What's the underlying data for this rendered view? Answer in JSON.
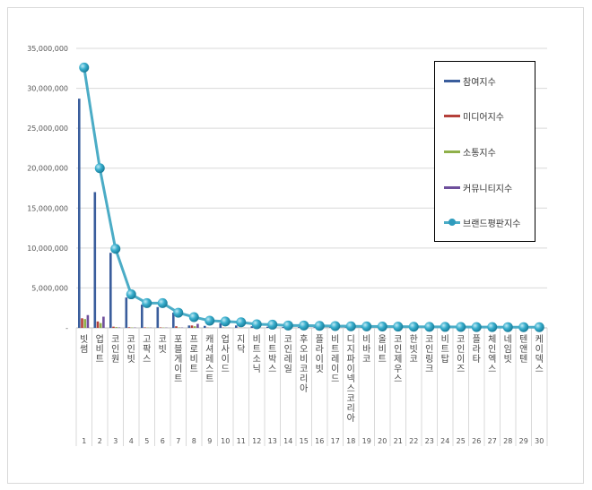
{
  "chart_data": {
    "type": "bar",
    "ylim": [
      0,
      35000000
    ],
    "yticks": [
      "-",
      "5,000,000",
      "10,000,000",
      "15,000,000",
      "20,000,000",
      "25,000,000",
      "30,000,000",
      "35,000,000"
    ],
    "grid": true,
    "legend_position": "right",
    "categories": [
      "빗썸",
      "업비트",
      "코인원",
      "코인빗",
      "고팍스",
      "코빗",
      "포블게이트",
      "프로비트",
      "캐셔레스트",
      "업사이드",
      "지닥",
      "비트소닉",
      "비트박스",
      "코인레일",
      "후오비코리아",
      "플라이빗",
      "비트레이드",
      "디지파이넥스코리아",
      "비바코",
      "올비트",
      "코인제우스",
      "한빗코",
      "코인링크",
      "비트탑",
      "코인이즈",
      "플라타",
      "체인엑스",
      "네임빗",
      "텐앤텐",
      "케이덱스"
    ],
    "ranks": [
      "1",
      "2",
      "3",
      "4",
      "5",
      "6",
      "7",
      "8",
      "9",
      "10",
      "11",
      "12",
      "13",
      "14",
      "15",
      "16",
      "17",
      "18",
      "19",
      "20",
      "21",
      "22",
      "23",
      "24",
      "25",
      "26",
      "27",
      "28",
      "29",
      "30"
    ],
    "series": [
      {
        "name": "참여지수",
        "type": "bar",
        "color": "#3a5d9c",
        "values": [
          28700000,
          17000000,
          9400000,
          3800000,
          2900000,
          2600000,
          1900000,
          300000,
          250000,
          600000,
          300000,
          200000,
          150000,
          120000,
          100000,
          90000,
          80000,
          70000,
          60000,
          50000,
          40000,
          40000,
          30000,
          30000,
          30000,
          20000,
          20000,
          20000,
          20000,
          20000
        ]
      },
      {
        "name": "미디어지수",
        "type": "bar",
        "color": "#b5403a",
        "values": [
          1200000,
          800000,
          150000,
          80000,
          60000,
          60000,
          200000,
          300000,
          30000,
          30000,
          20000,
          20000,
          20000,
          20000,
          20000,
          10000,
          10000,
          10000,
          10000,
          10000,
          10000,
          10000,
          10000,
          10000,
          10000,
          10000,
          10000,
          10000,
          10000,
          10000
        ]
      },
      {
        "name": "소통지수",
        "type": "bar",
        "color": "#8fb04a",
        "values": [
          1100000,
          600000,
          100000,
          50000,
          40000,
          40000,
          60000,
          200000,
          20000,
          20000,
          10000,
          10000,
          10000,
          10000,
          10000,
          10000,
          10000,
          10000,
          10000,
          10000,
          10000,
          10000,
          10000,
          10000,
          10000,
          10000,
          10000,
          10000,
          10000,
          10000
        ]
      },
      {
        "name": "커뮤니티지수",
        "type": "bar",
        "color": "#6e4f9c",
        "values": [
          1600000,
          1400000,
          60000,
          40000,
          30000,
          30000,
          40000,
          500000,
          20000,
          20000,
          10000,
          10000,
          10000,
          10000,
          10000,
          10000,
          10000,
          10000,
          10000,
          10000,
          10000,
          10000,
          10000,
          10000,
          10000,
          10000,
          10000,
          10000,
          10000,
          10000
        ]
      },
      {
        "name": "브랜드평판지수",
        "type": "line",
        "color": "#4bacc6",
        "values": [
          32600000,
          20000000,
          9900000,
          4200000,
          3100000,
          3100000,
          1900000,
          1350000,
          900000,
          800000,
          700000,
          450000,
          400000,
          300000,
          300000,
          250000,
          230000,
          200000,
          180000,
          170000,
          150000,
          140000,
          130000,
          120000,
          110000,
          100000,
          100000,
          90000,
          90000,
          80000
        ]
      }
    ]
  }
}
